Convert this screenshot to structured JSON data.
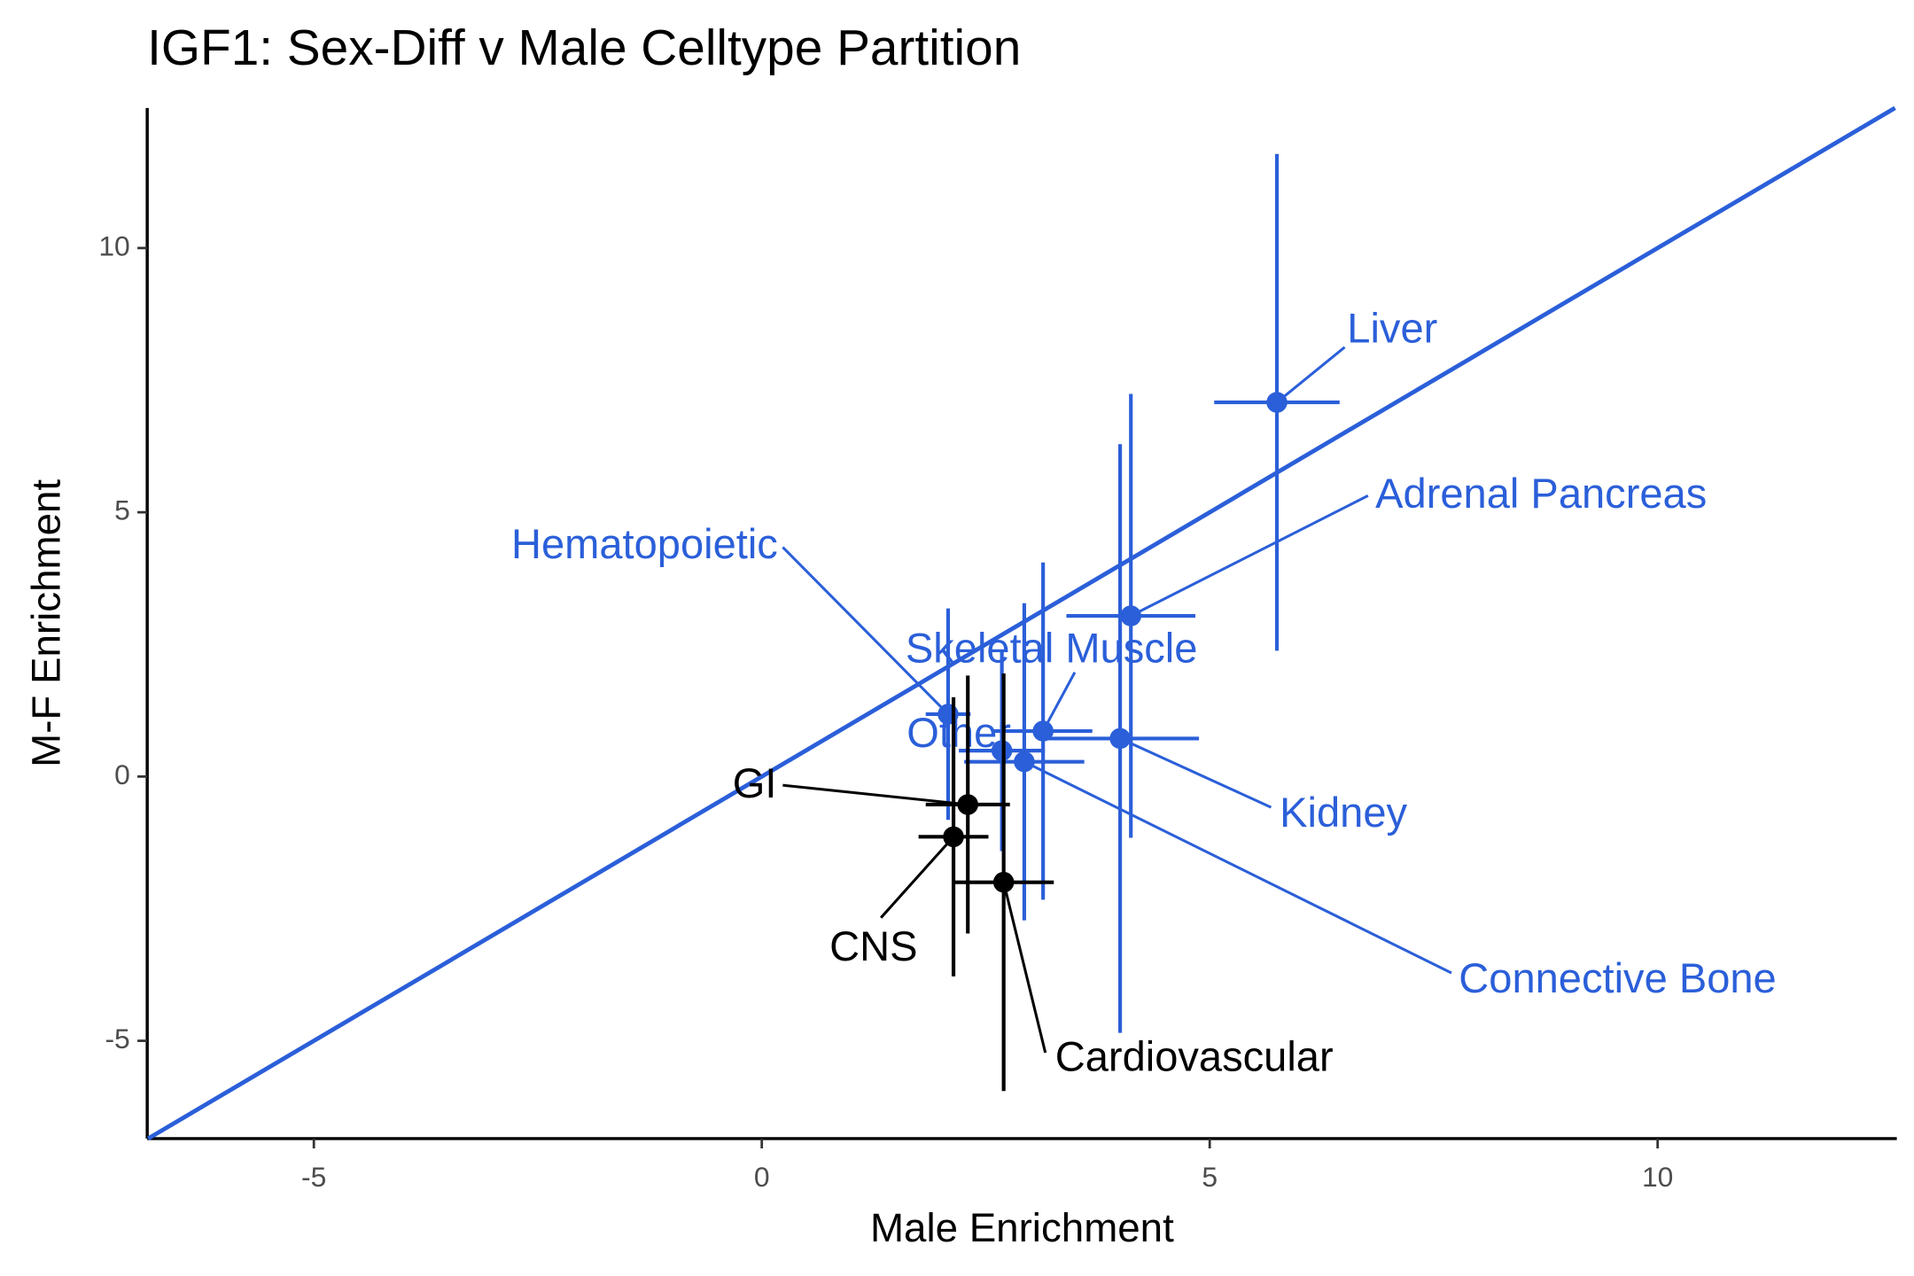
{
  "chart_data": {
    "type": "scatter",
    "title": "IGF1: Sex-Diff v Male Celltype Partition",
    "x_label": "Male Enrichment",
    "y_label": "M-F Enrichment",
    "xlim": [
      -6.86,
      12.67
    ],
    "ylim": [
      -6.85,
      12.65
    ],
    "xticks": [
      -5,
      0,
      5,
      10
    ],
    "yticks": [
      -5,
      0,
      5,
      10
    ],
    "reference_line": {
      "slope": 1,
      "intercept": 0,
      "color": "#2b5fd9"
    },
    "series": [
      {
        "color": "#2b5fd9",
        "labels": [
          "Liver",
          "Adrenal Pancreas",
          "Kidney",
          "Skeletal Muscle",
          "Connective Bone",
          "Other",
          "Hematopoietic"
        ],
        "x": [
          5.75,
          4.12,
          4.0,
          3.14,
          2.93,
          2.68,
          2.08
        ],
        "values": [
          7.08,
          3.04,
          0.72,
          0.86,
          0.28,
          0.49,
          1.18
        ],
        "xerr": [
          0.7,
          0.72,
          0.88,
          0.55,
          0.67,
          0.48,
          0.25
        ],
        "yerr": [
          4.7,
          4.2,
          5.57,
          3.19,
          3.0,
          1.9,
          2.0
        ]
      },
      {
        "color": "#000000",
        "labels": [
          "GI",
          "CNS",
          "Cardiovascular"
        ],
        "x": [
          2.3,
          2.14,
          2.7
        ],
        "values": [
          -0.53,
          -1.14,
          -2.0
        ],
        "xerr": [
          0.47,
          0.39,
          0.56
        ],
        "yerr": [
          2.44,
          2.64,
          3.95
        ]
      }
    ]
  }
}
